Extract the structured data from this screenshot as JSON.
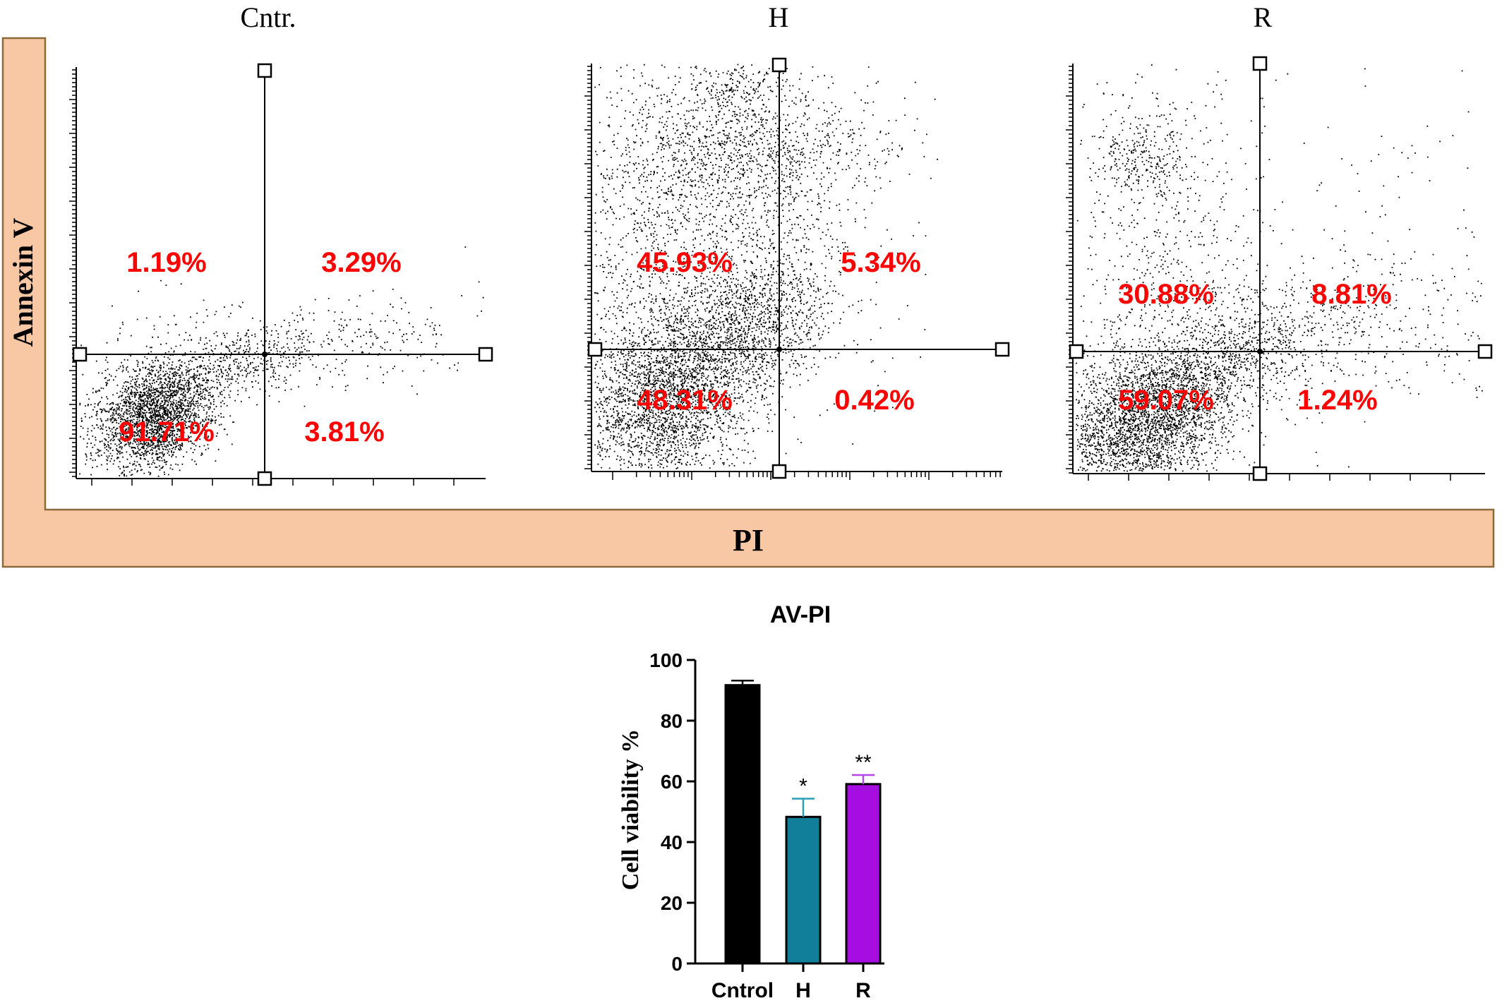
{
  "chart_data": [
    {
      "type": "scatter",
      "label": "flow cytometry quadrant plots",
      "ylabel": "Annexin V",
      "xlabel": "PI",
      "colors": {
        "frame": "#f8c8a4",
        "frame_border": "#8b6a3a",
        "percent_text": "#ff0000",
        "dots": "#000000"
      },
      "panels": [
        {
          "title": "Cntr.",
          "quadrants": {
            "upper_left": "1.19%",
            "upper_right": "3.29%",
            "lower_left": "91.71%",
            "lower_right": "3.81%"
          }
        },
        {
          "title": "H",
          "quadrants": {
            "upper_left": "45.93%",
            "upper_right": "5.34%",
            "lower_left": "48.31%",
            "lower_right": "0.42%"
          }
        },
        {
          "title": "R",
          "quadrants": {
            "upper_left": "30.88%",
            "upper_right": "8.81%",
            "lower_left": "59.07%",
            "lower_right": "1.24%"
          }
        }
      ]
    },
    {
      "type": "bar",
      "title": "AV-PI",
      "ylabel": "Cell viability %",
      "xlabel": "",
      "categories": [
        "Cntrol",
        "H",
        "R"
      ],
      "values": [
        91.7,
        48.3,
        59.1
      ],
      "errors": [
        1.5,
        6.0,
        3.0
      ],
      "significance": [
        "",
        "*",
        "**"
      ],
      "colors": [
        "#000000",
        "#117f99",
        "#a60de0"
      ],
      "error_colors": [
        "#000000",
        "#2aa0b8",
        "#b845e8"
      ],
      "ylim": [
        0,
        100
      ],
      "yticks": [
        "0",
        "20",
        "40",
        "60",
        "80",
        "100"
      ]
    }
  ]
}
